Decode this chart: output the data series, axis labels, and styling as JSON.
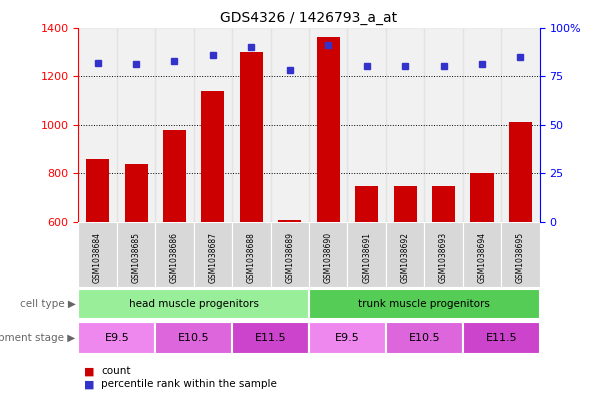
{
  "title": "GDS4326 / 1426793_a_at",
  "samples": [
    "GSM1038684",
    "GSM1038685",
    "GSM1038686",
    "GSM1038687",
    "GSM1038688",
    "GSM1038689",
    "GSM1038690",
    "GSM1038691",
    "GSM1038692",
    "GSM1038693",
    "GSM1038694",
    "GSM1038695"
  ],
  "counts": [
    860,
    840,
    980,
    1140,
    1300,
    610,
    1360,
    748,
    748,
    748,
    800,
    1010
  ],
  "percentiles": [
    82,
    81,
    83,
    86,
    90,
    78,
    91,
    80,
    80,
    80,
    81,
    85
  ],
  "ylim_left": [
    600,
    1400
  ],
  "ylim_right": [
    0,
    100
  ],
  "yticks_left": [
    600,
    800,
    1000,
    1200,
    1400
  ],
  "yticks_right": [
    0,
    25,
    50,
    75,
    100
  ],
  "bar_color": "#cc0000",
  "dot_color": "#3333cc",
  "grid_color": "#000000",
  "background_color": "#ffffff",
  "cell_type_groups": [
    {
      "label": "head muscle progenitors",
      "start": 0,
      "end": 6,
      "color": "#99ee99"
    },
    {
      "label": "trunk muscle progenitors",
      "start": 6,
      "end": 12,
      "color": "#55cc55"
    }
  ],
  "dev_stage_groups": [
    {
      "label": "E9.5",
      "start": 0,
      "end": 2,
      "color": "#ee88ee"
    },
    {
      "label": "E10.5",
      "start": 2,
      "end": 4,
      "color": "#dd66dd"
    },
    {
      "label": "E11.5",
      "start": 4,
      "end": 6,
      "color": "#cc44cc"
    },
    {
      "label": "E9.5",
      "start": 6,
      "end": 8,
      "color": "#ee88ee"
    },
    {
      "label": "E10.5",
      "start": 8,
      "end": 10,
      "color": "#dd66dd"
    },
    {
      "label": "E11.5",
      "start": 10,
      "end": 12,
      "color": "#cc44cc"
    }
  ]
}
